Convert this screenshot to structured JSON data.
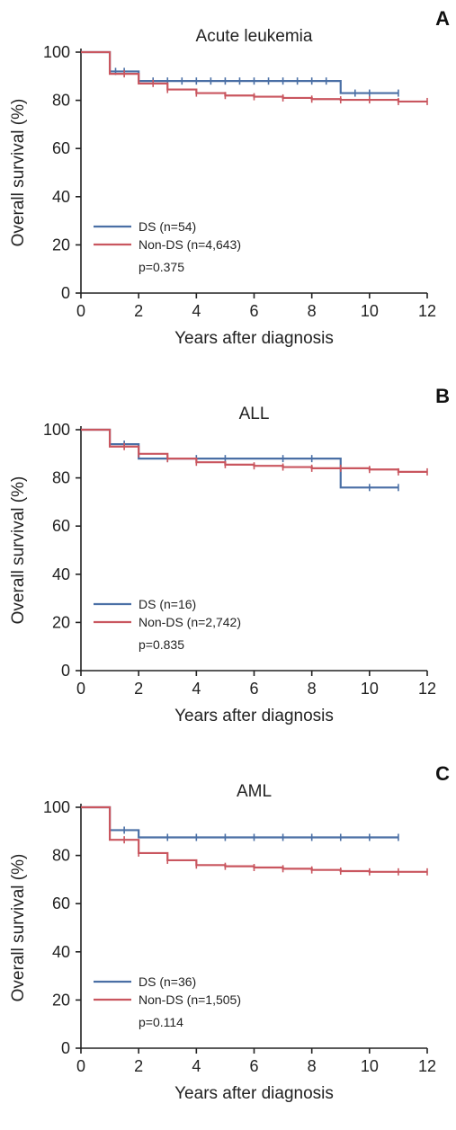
{
  "chart_data": [
    {
      "type": "line",
      "panel_label": "A",
      "title": "Acute leukemia",
      "xlabel": "Years after diagnosis",
      "ylabel": "Overall survival (%)",
      "xlim": [
        0,
        12
      ],
      "ylim": [
        0,
        100
      ],
      "xticks": [
        0,
        2,
        4,
        6,
        8,
        10,
        12
      ],
      "yticks": [
        0,
        20,
        40,
        60,
        80,
        100
      ],
      "grid": false,
      "legend_placement": "bottom-left",
      "p_value": "p=0.375",
      "series": [
        {
          "name": "DS (n=54)",
          "color": "#4a6fa5",
          "steps": [
            [
              0,
              100
            ],
            [
              1,
              92
            ],
            [
              2,
              88
            ],
            [
              9,
              83
            ]
          ],
          "end": 11,
          "censor": [
            1.2,
            1.5,
            2.5,
            3,
            3.5,
            4,
            4.5,
            5,
            5.5,
            6,
            6.5,
            7,
            7.5,
            8,
            8.5,
            9.5,
            10,
            11
          ]
        },
        {
          "name": "Non-DS (n=4,643)",
          "color": "#c9565f",
          "steps": [
            [
              0,
              100
            ],
            [
              1,
              91
            ],
            [
              2,
              87
            ],
            [
              3,
              84.5
            ],
            [
              4,
              83
            ],
            [
              5,
              82
            ],
            [
              6,
              81.5
            ],
            [
              7,
              81
            ],
            [
              8,
              80.5
            ],
            [
              9,
              80.2
            ],
            [
              11,
              79.5
            ]
          ],
          "end": 12,
          "censor": [
            1.5,
            2.5,
            3,
            4,
            5,
            6,
            7,
            8,
            9,
            10,
            11,
            12
          ]
        }
      ]
    },
    {
      "type": "line",
      "panel_label": "B",
      "title": "ALL",
      "xlabel": "Years after diagnosis",
      "ylabel": "Overall survival (%)",
      "xlim": [
        0,
        12
      ],
      "ylim": [
        0,
        100
      ],
      "xticks": [
        0,
        2,
        4,
        6,
        8,
        10,
        12
      ],
      "yticks": [
        0,
        20,
        40,
        60,
        80,
        100
      ],
      "grid": false,
      "legend_placement": "bottom-left",
      "p_value": "p=0.835",
      "series": [
        {
          "name": "DS (n=16)",
          "color": "#4a6fa5",
          "steps": [
            [
              0,
              100
            ],
            [
              1,
              94
            ],
            [
              2,
              88
            ],
            [
              9,
              76
            ]
          ],
          "end": 11,
          "censor": [
            1.5,
            3,
            4,
            5,
            7,
            8,
            10,
            11
          ]
        },
        {
          "name": "Non-DS (n=2,742)",
          "color": "#c9565f",
          "steps": [
            [
              0,
              100
            ],
            [
              1,
              93
            ],
            [
              2,
              90
            ],
            [
              3,
              88
            ],
            [
              4,
              86.5
            ],
            [
              5,
              85.5
            ],
            [
              6,
              85
            ],
            [
              7,
              84.5
            ],
            [
              8,
              84
            ],
            [
              10,
              83.5
            ],
            [
              11,
              82.5
            ]
          ],
          "end": 12,
          "censor": [
            1.5,
            2,
            3,
            4,
            5,
            6,
            7,
            8,
            9,
            10,
            11,
            12
          ]
        }
      ]
    },
    {
      "type": "line",
      "panel_label": "C",
      "title": "AML",
      "xlabel": "Years after diagnosis",
      "ylabel": "Overall survival (%)",
      "xlim": [
        0,
        12
      ],
      "ylim": [
        0,
        100
      ],
      "xticks": [
        0,
        2,
        4,
        6,
        8,
        10,
        12
      ],
      "yticks": [
        0,
        20,
        40,
        60,
        80,
        100
      ],
      "grid": false,
      "legend_placement": "bottom-left",
      "p_value": "p=0.114",
      "series": [
        {
          "name": "DS (n=36)",
          "color": "#4a6fa5",
          "steps": [
            [
              0,
              100
            ],
            [
              1,
              90.5
            ],
            [
              2,
              87.5
            ]
          ],
          "end": 11,
          "censor": [
            1.5,
            3,
            4,
            5,
            6,
            7,
            8,
            9,
            10,
            11
          ]
        },
        {
          "name": "Non-DS (n=1,505)",
          "color": "#c9565f",
          "steps": [
            [
              0,
              100
            ],
            [
              1,
              86.5
            ],
            [
              2,
              81
            ],
            [
              3,
              78
            ],
            [
              4,
              76
            ],
            [
              5,
              75.5
            ],
            [
              6,
              75
            ],
            [
              7,
              74.5
            ],
            [
              8,
              74
            ],
            [
              9,
              73.5
            ],
            [
              10,
              73.2
            ]
          ],
          "end": 12,
          "censor": [
            1.5,
            2,
            3,
            4,
            5,
            6,
            7,
            8,
            9,
            10,
            11,
            12
          ]
        }
      ]
    }
  ]
}
